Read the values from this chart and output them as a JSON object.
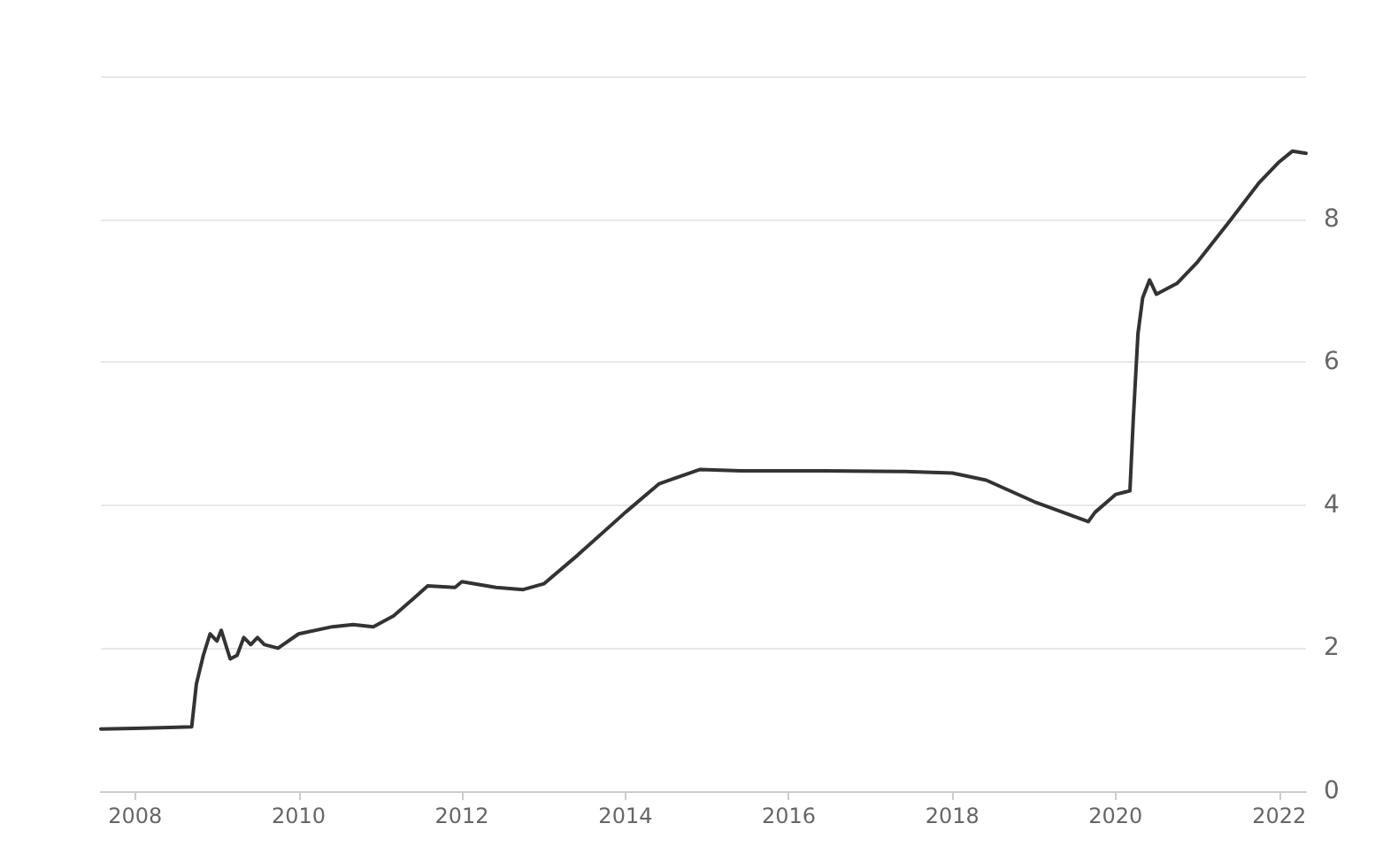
{
  "chart_data": {
    "type": "line",
    "x": [
      "2007-08",
      "2008-01",
      "2008-06",
      "2008-09-10",
      "2008-10",
      "2008-11",
      "2008-12",
      "2009-01",
      "2009-01-20",
      "2009-03",
      "2009-04",
      "2009-05",
      "2009-06",
      "2009-07",
      "2009-08",
      "2009-10",
      "2010-01",
      "2010-06",
      "2010-09",
      "2010-12",
      "2011-03",
      "2011-06",
      "2011-08",
      "2011-12",
      "2012-01",
      "2012-06",
      "2012-10",
      "2013-01",
      "2013-06",
      "2014-01",
      "2014-06",
      "2014-12",
      "2015-06",
      "2016-06",
      "2017-06",
      "2018-01",
      "2018-06",
      "2019-01",
      "2019-09",
      "2019-10",
      "2020-01",
      "2020-03-05",
      "2020-03-20",
      "2020-04-10",
      "2020-05-01",
      "2020-06-01",
      "2020-07",
      "2020-10",
      "2021-01",
      "2021-06",
      "2021-10",
      "2022-01",
      "2022-03",
      "2022-05"
    ],
    "series": [
      {
        "color": "#333333",
        "values": [
          0.87,
          0.88,
          0.89,
          0.9,
          1.5,
          1.9,
          2.2,
          2.1,
          2.25,
          1.85,
          1.9,
          2.15,
          2.05,
          2.15,
          2.05,
          2.0,
          2.2,
          2.3,
          2.33,
          2.3,
          2.45,
          2.7,
          2.87,
          2.85,
          2.93,
          2.85,
          2.82,
          2.9,
          3.3,
          3.9,
          4.3,
          4.5,
          4.48,
          4.48,
          4.47,
          4.45,
          4.35,
          4.05,
          3.77,
          3.9,
          4.15,
          4.2,
          5.2,
          6.4,
          6.9,
          7.15,
          6.95,
          7.1,
          7.4,
          8.0,
          8.5,
          8.8,
          8.95,
          8.92
        ]
      }
    ],
    "xlim": [
      "2007-08",
      "2022-05"
    ],
    "xticks": [
      "2008",
      "2010",
      "2012",
      "2014",
      "2016",
      "2018",
      "2020",
      "2022"
    ],
    "ylim": [
      0,
      10
    ],
    "yticks": [
      0,
      2,
      4,
      6,
      8,
      {
        "value": 10,
        "label": null
      }
    ],
    "grid": "y",
    "marker": "none",
    "line_style": "solid"
  }
}
